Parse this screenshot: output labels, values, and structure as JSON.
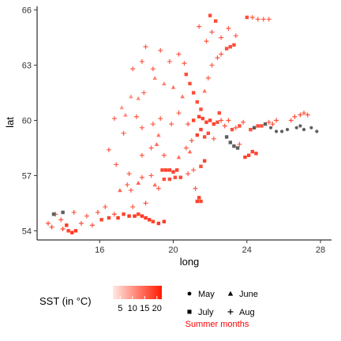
{
  "chart_data": {
    "type": "scatter",
    "xlabel": "long",
    "ylabel": "lat",
    "xlim": [
      12.6,
      28.6
    ],
    "ylim": [
      53.5,
      66.2
    ],
    "x_ticks": [
      16,
      20,
      24,
      28
    ],
    "y_ticks": [
      54,
      57,
      60,
      63,
      66
    ],
    "grid": false,
    "color_scale": {
      "title": "SST (in °C)",
      "ticks": [
        5,
        10,
        15,
        20
      ],
      "low_color": "#ffe9e3",
      "high_color": "#ff1a00",
      "na_color": "#5f5f5f"
    },
    "shape_legend": {
      "entries": [
        {
          "label": "May",
          "shape": "circle"
        },
        {
          "label": "June",
          "shape": "triangle"
        },
        {
          "label": "July",
          "shape": "square"
        },
        {
          "label": "Aug",
          "shape": "plus"
        }
      ],
      "caption": "Summer months",
      "caption_color": "#ff0000"
    },
    "points": [
      {
        "x": 13.2,
        "y": 54.4,
        "m": "Aug",
        "t": 17
      },
      {
        "x": 13.4,
        "y": 54.2,
        "m": "Aug",
        "t": 18
      },
      {
        "x": 13.6,
        "y": 54.9,
        "m": "Aug",
        "t": 16
      },
      {
        "x": 13.9,
        "y": 54.6,
        "m": "Aug",
        "t": 17
      },
      {
        "x": 14.0,
        "y": 54.1,
        "m": "Aug",
        "t": 18
      },
      {
        "x": 14.2,
        "y": 54.3,
        "m": "July",
        "t": 19
      },
      {
        "x": 14.3,
        "y": 54.0,
        "m": "July",
        "t": 18
      },
      {
        "x": 14.5,
        "y": 53.9,
        "m": "July",
        "t": 19
      },
      {
        "x": 14.7,
        "y": 54.0,
        "m": "July",
        "t": 19
      },
      {
        "x": 13.5,
        "y": 54.9,
        "m": "July",
        "t": null
      },
      {
        "x": 14.0,
        "y": 55.0,
        "m": "July",
        "t": null
      },
      {
        "x": 14.6,
        "y": 55.0,
        "m": "Aug",
        "t": 17
      },
      {
        "x": 15.0,
        "y": 54.4,
        "m": "Aug",
        "t": 17
      },
      {
        "x": 15.3,
        "y": 54.8,
        "m": "Aug",
        "t": 16
      },
      {
        "x": 15.6,
        "y": 54.3,
        "m": "Aug",
        "t": 17
      },
      {
        "x": 15.9,
        "y": 55.0,
        "m": "Aug",
        "t": 17
      },
      {
        "x": 16.1,
        "y": 54.6,
        "m": "July",
        "t": 18
      },
      {
        "x": 16.3,
        "y": 55.3,
        "m": "Aug",
        "t": 16
      },
      {
        "x": 16.5,
        "y": 54.7,
        "m": "July",
        "t": 18
      },
      {
        "x": 16.8,
        "y": 54.9,
        "m": "Aug",
        "t": 17
      },
      {
        "x": 17.0,
        "y": 54.7,
        "m": "July",
        "t": 19
      },
      {
        "x": 17.3,
        "y": 54.9,
        "m": "July",
        "t": 18
      },
      {
        "x": 17.6,
        "y": 54.8,
        "m": "July",
        "t": 19
      },
      {
        "x": 17.9,
        "y": 54.8,
        "m": "July",
        "t": 19
      },
      {
        "x": 18.1,
        "y": 54.9,
        "m": "July",
        "t": 18
      },
      {
        "x": 18.3,
        "y": 54.8,
        "m": "July",
        "t": 19
      },
      {
        "x": 18.5,
        "y": 54.7,
        "m": "July",
        "t": 19
      },
      {
        "x": 18.7,
        "y": 54.6,
        "m": "July",
        "t": 19
      },
      {
        "x": 18.9,
        "y": 54.5,
        "m": "July",
        "t": 18
      },
      {
        "x": 19.2,
        "y": 54.4,
        "m": "July",
        "t": 19
      },
      {
        "x": 19.5,
        "y": 54.5,
        "m": "July",
        "t": 19
      },
      {
        "x": 17.8,
        "y": 55.3,
        "m": "Aug",
        "t": 16
      },
      {
        "x": 18.5,
        "y": 55.5,
        "m": "Aug",
        "t": 16
      },
      {
        "x": 17.1,
        "y": 56.2,
        "m": "June",
        "t": 15
      },
      {
        "x": 17.5,
        "y": 56.5,
        "m": "Aug",
        "t": 16
      },
      {
        "x": 17.7,
        "y": 56.2,
        "m": "Aug",
        "t": 16
      },
      {
        "x": 17.6,
        "y": 57.1,
        "m": "Aug",
        "t": 16
      },
      {
        "x": 18.1,
        "y": 56.6,
        "m": "June",
        "t": 15
      },
      {
        "x": 18.3,
        "y": 56.9,
        "m": "Aug",
        "t": 16
      },
      {
        "x": 18.8,
        "y": 57.0,
        "m": "Aug",
        "t": 16
      },
      {
        "x": 19.0,
        "y": 56.5,
        "m": "June",
        "t": 14
      },
      {
        "x": 19.2,
        "y": 56.3,
        "m": "Aug",
        "t": 16
      },
      {
        "x": 19.4,
        "y": 57.3,
        "m": "July",
        "t": 18
      },
      {
        "x": 19.6,
        "y": 57.3,
        "m": "July",
        "t": 18
      },
      {
        "x": 19.8,
        "y": 57.3,
        "m": "July",
        "t": 18
      },
      {
        "x": 20.0,
        "y": 57.2,
        "m": "July",
        "t": 18
      },
      {
        "x": 20.2,
        "y": 57.3,
        "m": "July",
        "t": 18
      },
      {
        "x": 19.5,
        "y": 56.8,
        "m": "July",
        "t": 17
      },
      {
        "x": 19.8,
        "y": 56.8,
        "m": "July",
        "t": 17
      },
      {
        "x": 20.1,
        "y": 56.9,
        "m": "July",
        "t": 17
      },
      {
        "x": 20.4,
        "y": 56.9,
        "m": "July",
        "t": 17
      },
      {
        "x": 20.8,
        "y": 57.1,
        "m": "Aug",
        "t": 16
      },
      {
        "x": 21.1,
        "y": 57.3,
        "m": "Aug",
        "t": 16
      },
      {
        "x": 20.3,
        "y": 58.0,
        "m": "June",
        "t": 14
      },
      {
        "x": 20.9,
        "y": 58.3,
        "m": "June",
        "t": 14
      },
      {
        "x": 21.5,
        "y": 57.5,
        "m": "July",
        "t": 17
      },
      {
        "x": 21.7,
        "y": 57.8,
        "m": "July",
        "t": 18
      },
      {
        "x": 21.2,
        "y": 56.3,
        "m": "Aug",
        "t": 16
      },
      {
        "x": 21.4,
        "y": 55.8,
        "m": "July",
        "t": 18
      },
      {
        "x": 21.5,
        "y": 55.6,
        "m": "July",
        "t": 18
      },
      {
        "x": 21.3,
        "y": 55.6,
        "m": "July",
        "t": 18
      },
      {
        "x": 18.3,
        "y": 58.1,
        "m": "Aug",
        "t": 16
      },
      {
        "x": 18.8,
        "y": 58.5,
        "m": "Aug",
        "t": 16
      },
      {
        "x": 19.1,
        "y": 58.7,
        "m": "June",
        "t": 14
      },
      {
        "x": 19.5,
        "y": 58.1,
        "m": "Aug",
        "t": 16
      },
      {
        "x": 20.7,
        "y": 58.5,
        "m": "Aug",
        "t": 16
      },
      {
        "x": 21.0,
        "y": 58.9,
        "m": "Aug",
        "t": 16
      },
      {
        "x": 21.3,
        "y": 59.2,
        "m": "July",
        "t": 18
      },
      {
        "x": 21.5,
        "y": 59.5,
        "m": "July",
        "t": 18
      },
      {
        "x": 21.7,
        "y": 59.1,
        "m": "July",
        "t": 17
      },
      {
        "x": 21.9,
        "y": 59.3,
        "m": "July",
        "t": 17
      },
      {
        "x": 22.2,
        "y": 59.0,
        "m": "Aug",
        "t": 16
      },
      {
        "x": 20.8,
        "y": 59.8,
        "m": "Aug",
        "t": 17
      },
      {
        "x": 21.1,
        "y": 60.0,
        "m": "July",
        "t": 18
      },
      {
        "x": 21.4,
        "y": 60.2,
        "m": "July",
        "t": 18
      },
      {
        "x": 21.6,
        "y": 60.1,
        "m": "July",
        "t": 18
      },
      {
        "x": 21.8,
        "y": 59.9,
        "m": "July",
        "t": 18
      },
      {
        "x": 22.0,
        "y": 60.0,
        "m": "July",
        "t": 18
      },
      {
        "x": 22.2,
        "y": 59.8,
        "m": "July",
        "t": 18
      },
      {
        "x": 22.4,
        "y": 59.9,
        "m": "July",
        "t": 17
      },
      {
        "x": 22.6,
        "y": 60.0,
        "m": "Aug",
        "t": 17
      },
      {
        "x": 22.8,
        "y": 59.7,
        "m": "Aug",
        "t": 17
      },
      {
        "x": 23.0,
        "y": 60.0,
        "m": "Aug",
        "t": 17
      },
      {
        "x": 23.2,
        "y": 59.5,
        "m": "July",
        "t": 17
      },
      {
        "x": 23.4,
        "y": 59.6,
        "m": "Aug",
        "t": 17
      },
      {
        "x": 23.6,
        "y": 59.7,
        "m": "July",
        "t": 17
      },
      {
        "x": 23.8,
        "y": 59.9,
        "m": "Aug",
        "t": 17
      },
      {
        "x": 22.9,
        "y": 59.1,
        "m": "July",
        "t": null
      },
      {
        "x": 23.1,
        "y": 58.8,
        "m": "July",
        "t": null
      },
      {
        "x": 23.3,
        "y": 58.6,
        "m": "July",
        "t": null
      },
      {
        "x": 23.5,
        "y": 58.5,
        "m": "July",
        "t": null
      },
      {
        "x": 23.6,
        "y": 58.7,
        "m": "Aug",
        "t": 16
      },
      {
        "x": 23.9,
        "y": 58.0,
        "m": "July",
        "t": 18
      },
      {
        "x": 24.1,
        "y": 58.1,
        "m": "July",
        "t": 18
      },
      {
        "x": 24.3,
        "y": 58.3,
        "m": "July",
        "t": 18
      },
      {
        "x": 24.5,
        "y": 58.2,
        "m": "July",
        "t": 18
      },
      {
        "x": 24.2,
        "y": 59.5,
        "m": "July",
        "t": 17
      },
      {
        "x": 24.4,
        "y": 59.6,
        "m": "July",
        "t": null
      },
      {
        "x": 24.6,
        "y": 59.7,
        "m": "July",
        "t": 17
      },
      {
        "x": 24.8,
        "y": 59.7,
        "m": "July",
        "t": 17
      },
      {
        "x": 25.0,
        "y": 59.8,
        "m": "July",
        "t": null
      },
      {
        "x": 25.2,
        "y": 59.9,
        "m": "Aug",
        "t": 17
      },
      {
        "x": 25.4,
        "y": 59.8,
        "m": "Aug",
        "t": 17
      },
      {
        "x": 25.6,
        "y": 60.0,
        "m": "Aug",
        "t": 17
      },
      {
        "x": 25.3,
        "y": 59.6,
        "m": "May",
        "t": null
      },
      {
        "x": 25.6,
        "y": 59.4,
        "m": "May",
        "t": null
      },
      {
        "x": 25.9,
        "y": 59.4,
        "m": "May",
        "t": null
      },
      {
        "x": 26.2,
        "y": 59.5,
        "m": "May",
        "t": null
      },
      {
        "x": 26.4,
        "y": 60.0,
        "m": "Aug",
        "t": 17
      },
      {
        "x": 26.6,
        "y": 60.2,
        "m": "Aug",
        "t": 17
      },
      {
        "x": 26.9,
        "y": 60.3,
        "m": "Aug",
        "t": 17
      },
      {
        "x": 27.1,
        "y": 60.4,
        "m": "Aug",
        "t": 17
      },
      {
        "x": 27.3,
        "y": 60.3,
        "m": "Aug",
        "t": 17
      },
      {
        "x": 26.7,
        "y": 59.6,
        "m": "May",
        "t": null
      },
      {
        "x": 26.9,
        "y": 59.7,
        "m": "May",
        "t": null
      },
      {
        "x": 27.1,
        "y": 59.5,
        "m": "May",
        "t": null
      },
      {
        "x": 27.5,
        "y": 59.6,
        "m": "May",
        "t": null
      },
      {
        "x": 27.8,
        "y": 59.4,
        "m": "May",
        "t": null
      },
      {
        "x": 22.5,
        "y": 60.4,
        "m": "July",
        "t": 17
      },
      {
        "x": 19.3,
        "y": 60.1,
        "m": "Aug",
        "t": 16
      },
      {
        "x": 19.9,
        "y": 59.8,
        "m": "Aug",
        "t": 16
      },
      {
        "x": 20.3,
        "y": 60.4,
        "m": "Aug",
        "t": 16
      },
      {
        "x": 20.5,
        "y": 61.3,
        "m": "June",
        "t": 13
      },
      {
        "x": 20.0,
        "y": 61.8,
        "m": "June",
        "t": 13
      },
      {
        "x": 19.5,
        "y": 62.0,
        "m": "June",
        "t": 12
      },
      {
        "x": 19.0,
        "y": 62.3,
        "m": "June",
        "t": 12
      },
      {
        "x": 18.4,
        "y": 61.5,
        "m": "Aug",
        "t": 15
      },
      {
        "x": 18.1,
        "y": 61.2,
        "m": "June",
        "t": 11
      },
      {
        "x": 17.7,
        "y": 61.3,
        "m": "June",
        "t": 10
      },
      {
        "x": 17.2,
        "y": 60.7,
        "m": "June",
        "t": 10
      },
      {
        "x": 17.4,
        "y": 60.3,
        "m": "June",
        "t": 11
      },
      {
        "x": 16.8,
        "y": 60.1,
        "m": "Aug",
        "t": 16
      },
      {
        "x": 18.0,
        "y": 60.2,
        "m": "Aug",
        "t": 16
      },
      {
        "x": 18.3,
        "y": 59.6,
        "m": "Aug",
        "t": 16
      },
      {
        "x": 18.9,
        "y": 59.8,
        "m": "Aug",
        "t": 16
      },
      {
        "x": 19.2,
        "y": 59.2,
        "m": "June",
        "t": 13
      },
      {
        "x": 17.8,
        "y": 62.8,
        "m": "Aug",
        "t": 16
      },
      {
        "x": 18.3,
        "y": 63.2,
        "m": "Aug",
        "t": 16
      },
      {
        "x": 18.9,
        "y": 62.8,
        "m": "Aug",
        "t": 16
      },
      {
        "x": 18.5,
        "y": 64.0,
        "m": "Aug",
        "t": 16
      },
      {
        "x": 19.3,
        "y": 63.8,
        "m": "Aug",
        "t": 16
      },
      {
        "x": 19.8,
        "y": 63.2,
        "m": "Aug",
        "t": 16
      },
      {
        "x": 20.3,
        "y": 63.6,
        "m": "Aug",
        "t": 16
      },
      {
        "x": 20.6,
        "y": 63.1,
        "m": "Aug",
        "t": 16
      },
      {
        "x": 20.7,
        "y": 62.5,
        "m": "July",
        "t": 17
      },
      {
        "x": 20.9,
        "y": 62.0,
        "m": "July",
        "t": 17
      },
      {
        "x": 21.1,
        "y": 61.5,
        "m": "July",
        "t": 17
      },
      {
        "x": 21.3,
        "y": 61.0,
        "m": "July",
        "t": 17
      },
      {
        "x": 21.5,
        "y": 60.6,
        "m": "July",
        "t": 17
      },
      {
        "x": 21.7,
        "y": 61.6,
        "m": "June",
        "t": 13
      },
      {
        "x": 21.9,
        "y": 62.3,
        "m": "Aug",
        "t": 16
      },
      {
        "x": 22.1,
        "y": 63.0,
        "m": "Aug",
        "t": 16
      },
      {
        "x": 22.4,
        "y": 63.4,
        "m": "Aug",
        "t": 16
      },
      {
        "x": 22.6,
        "y": 63.6,
        "m": "Aug",
        "t": 16
      },
      {
        "x": 22.9,
        "y": 63.9,
        "m": "July",
        "t": 17
      },
      {
        "x": 23.1,
        "y": 64.0,
        "m": "July",
        "t": 17
      },
      {
        "x": 23.3,
        "y": 64.1,
        "m": "July",
        "t": 17
      },
      {
        "x": 22.6,
        "y": 64.5,
        "m": "Aug",
        "t": 16
      },
      {
        "x": 23.0,
        "y": 65.0,
        "m": "Aug",
        "t": 16
      },
      {
        "x": 23.4,
        "y": 64.6,
        "m": "Aug",
        "t": 16
      },
      {
        "x": 22.1,
        "y": 64.8,
        "m": "Aug",
        "t": 16
      },
      {
        "x": 21.8,
        "y": 64.3,
        "m": "Aug",
        "t": 16
      },
      {
        "x": 21.4,
        "y": 65.1,
        "m": "Aug",
        "t": 16
      },
      {
        "x": 22.0,
        "y": 65.7,
        "m": "July",
        "t": 17
      },
      {
        "x": 22.3,
        "y": 65.4,
        "m": "July",
        "t": 17
      },
      {
        "x": 24.0,
        "y": 65.6,
        "m": "July",
        "t": 17
      },
      {
        "x": 24.3,
        "y": 65.6,
        "m": "Aug",
        "t": 16
      },
      {
        "x": 24.6,
        "y": 65.5,
        "m": "Aug",
        "t": 16
      },
      {
        "x": 24.9,
        "y": 65.5,
        "m": "Aug",
        "t": 16
      },
      {
        "x": 25.2,
        "y": 65.5,
        "m": "Aug",
        "t": 16
      },
      {
        "x": 16.5,
        "y": 58.4,
        "m": "Aug",
        "t": 16
      },
      {
        "x": 16.9,
        "y": 57.6,
        "m": "Aug",
        "t": 16
      },
      {
        "x": 17.3,
        "y": 59.3,
        "m": "Aug",
        "t": 16
      }
    ]
  }
}
